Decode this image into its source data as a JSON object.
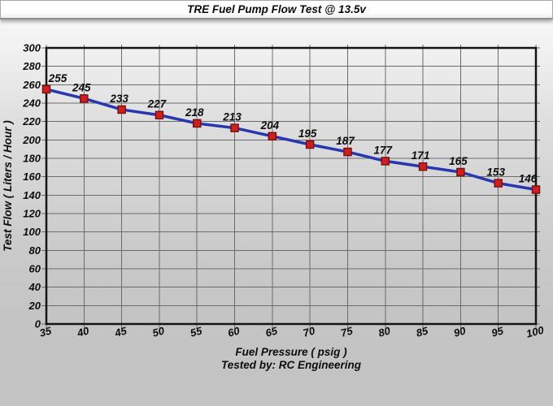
{
  "title": "TRE Fuel Pump Flow Test @ 13.5v",
  "chart_data": {
    "type": "line",
    "x": [
      35,
      40,
      45,
      50,
      55,
      60,
      65,
      70,
      75,
      80,
      85,
      90,
      95,
      100
    ],
    "series": [
      {
        "name": "Test Flow",
        "values": [
          255,
          245,
          233,
          227,
          218,
          213,
          204,
          195,
          187,
          177,
          171,
          165,
          153,
          146
        ]
      }
    ],
    "title": "TRE Fuel Pump Flow Test @ 13.5v",
    "xlabel": "Fuel Pressure ( psig )",
    "ylabel": "Test Flow ( Liters / Hour )",
    "footer": "Tested by: RC Engineering",
    "xlim": [
      35,
      100
    ],
    "ylim": [
      0,
      300
    ],
    "x_ticks": [
      35,
      40,
      45,
      50,
      55,
      60,
      65,
      70,
      75,
      80,
      85,
      90,
      95,
      100
    ],
    "y_ticks": [
      0,
      20,
      40,
      60,
      80,
      100,
      120,
      140,
      160,
      180,
      200,
      220,
      240,
      260,
      280,
      300
    ],
    "grid": true,
    "legend": "none",
    "point_labels_shown": true,
    "x_tick_rotation_deg": -15,
    "colors": {
      "line": "#2836b0",
      "marker": "#cf2020",
      "marker_border": "#7a1212",
      "grid": "#6b6b6b",
      "frame": "#141414",
      "text": "#0d0d0d"
    }
  }
}
